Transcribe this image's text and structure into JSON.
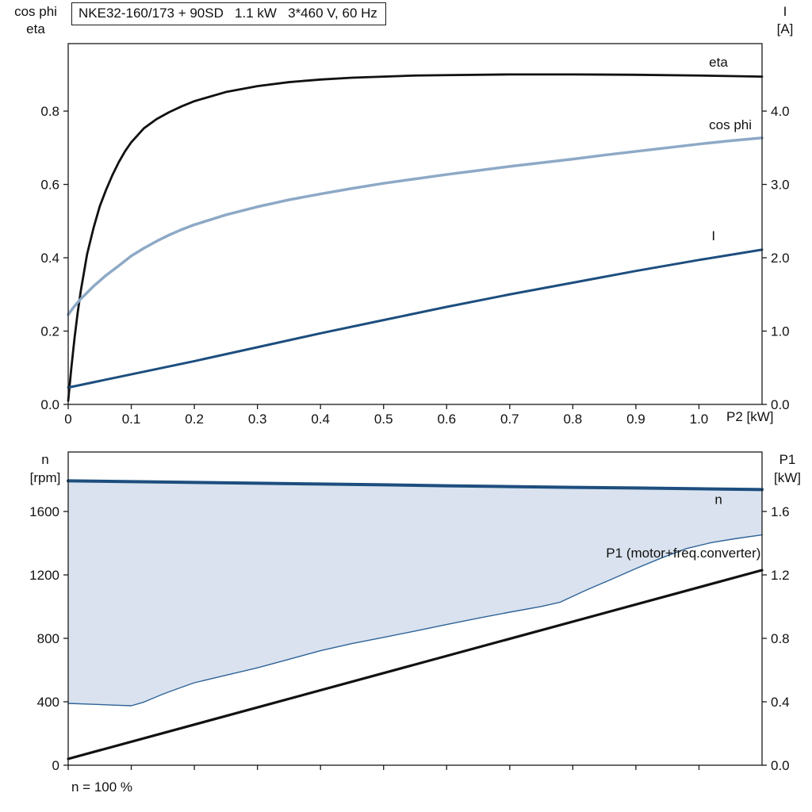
{
  "page": {
    "background": "#ffffff"
  },
  "footer": {
    "note": "n = 100 %"
  },
  "chart_data": [
    {
      "id": "motor-electrical",
      "type": "line",
      "title": "NKE32-160/173 + 90SD   1.1 kW   3*460 V, 60 Hz",
      "x": {
        "label": "P2 [kW]",
        "min": 0,
        "max": 1.1,
        "ticks": [
          0,
          0.1,
          0.2,
          0.3,
          0.4,
          0.5,
          0.6,
          0.7,
          0.8,
          0.9,
          1.0
        ],
        "tick_labels": [
          "0",
          "0.1",
          "0.2",
          "0.3",
          "0.4",
          "0.5",
          "0.6",
          "0.7",
          "0.8",
          "0.9",
          "1.0"
        ]
      },
      "y_left": {
        "label_lines": [
          "cos phi",
          "eta"
        ],
        "min": 0,
        "max": 0.984,
        "ticks": [
          0,
          0.2,
          0.4,
          0.6,
          0.8
        ],
        "tick_labels": [
          "0.0",
          "0.2",
          "0.4",
          "0.6",
          "0.8"
        ]
      },
      "y_right": {
        "label_lines": [
          "I",
          "[A]"
        ],
        "min": 0,
        "max": 4.92,
        "ticks": [
          0,
          1,
          2,
          3,
          4
        ],
        "tick_labels": [
          "0.0",
          "1.0",
          "2.0",
          "3.0",
          "4.0"
        ]
      },
      "grid": false,
      "series": [
        {
          "name": "eta",
          "type": "line",
          "axis": "left",
          "color": "#111111",
          "width": 2.8,
          "points": [
            [
              0,
              0.01
            ],
            [
              0.005,
              0.1
            ],
            [
              0.01,
              0.18
            ],
            [
              0.015,
              0.25
            ],
            [
              0.02,
              0.31
            ],
            [
              0.03,
              0.41
            ],
            [
              0.04,
              0.48
            ],
            [
              0.05,
              0.54
            ],
            [
              0.06,
              0.585
            ],
            [
              0.07,
              0.625
            ],
            [
              0.08,
              0.66
            ],
            [
              0.09,
              0.69
            ],
            [
              0.1,
              0.715
            ],
            [
              0.12,
              0.753
            ],
            [
              0.14,
              0.778
            ],
            [
              0.16,
              0.797
            ],
            [
              0.18,
              0.813
            ],
            [
              0.2,
              0.827
            ],
            [
              0.25,
              0.852
            ],
            [
              0.3,
              0.868
            ],
            [
              0.35,
              0.879
            ],
            [
              0.4,
              0.886
            ],
            [
              0.45,
              0.891
            ],
            [
              0.5,
              0.894
            ],
            [
              0.55,
              0.897
            ],
            [
              0.6,
              0.898
            ],
            [
              0.7,
              0.9
            ],
            [
              0.8,
              0.9
            ],
            [
              0.9,
              0.899
            ],
            [
              1.0,
              0.897
            ],
            [
              1.1,
              0.894
            ]
          ]
        },
        {
          "name": "cos-phi",
          "type": "line",
          "axis": "left",
          "color": "#8da9c6",
          "width": 3.5,
          "points": [
            [
              0,
              0.245
            ],
            [
              0.01,
              0.268
            ],
            [
              0.02,
              0.288
            ],
            [
              0.03,
              0.305
            ],
            [
              0.04,
              0.322
            ],
            [
              0.05,
              0.337
            ],
            [
              0.06,
              0.352
            ],
            [
              0.08,
              0.378
            ],
            [
              0.1,
              0.405
            ],
            [
              0.12,
              0.426
            ],
            [
              0.14,
              0.445
            ],
            [
              0.16,
              0.462
            ],
            [
              0.18,
              0.477
            ],
            [
              0.2,
              0.49
            ],
            [
              0.25,
              0.517
            ],
            [
              0.3,
              0.539
            ],
            [
              0.35,
              0.558
            ],
            [
              0.4,
              0.574
            ],
            [
              0.45,
              0.589
            ],
            [
              0.5,
              0.603
            ],
            [
              0.55,
              0.615
            ],
            [
              0.6,
              0.627
            ],
            [
              0.65,
              0.638
            ],
            [
              0.7,
              0.649
            ],
            [
              0.75,
              0.659
            ],
            [
              0.8,
              0.669
            ],
            [
              0.85,
              0.68
            ],
            [
              0.9,
              0.69
            ],
            [
              0.95,
              0.7
            ],
            [
              1.0,
              0.71
            ],
            [
              1.05,
              0.719
            ],
            [
              1.1,
              0.727
            ]
          ]
        },
        {
          "name": "current-I",
          "type": "line",
          "axis": "right",
          "color": "#1d4e7e",
          "width": 3,
          "points": [
            [
              0,
              0.23
            ],
            [
              0.1,
              0.41
            ],
            [
              0.2,
              0.59
            ],
            [
              0.3,
              0.78
            ],
            [
              0.4,
              0.97
            ],
            [
              0.5,
              1.15
            ],
            [
              0.6,
              1.33
            ],
            [
              0.7,
              1.5
            ],
            [
              0.8,
              1.66
            ],
            [
              0.9,
              1.82
            ],
            [
              1.0,
              1.97
            ],
            [
              1.05,
              2.04
            ],
            [
              1.1,
              2.11
            ]
          ]
        }
      ],
      "annotations": [
        {
          "id": "eta-label",
          "text": "eta",
          "x": 1.016,
          "y": 0.921,
          "axis": "left",
          "color": "#111111",
          "anchor": "start"
        },
        {
          "id": "cos-phi-label",
          "text": "cos phi",
          "x": 1.016,
          "y": 0.75,
          "axis": "left",
          "color": "#8da9c6",
          "anchor": "start"
        },
        {
          "id": "current-label",
          "text": "I",
          "x": 1.02,
          "y": 2.24,
          "axis": "right",
          "color": "#1d4e7e",
          "anchor": "start"
        }
      ]
    },
    {
      "id": "speed-power",
      "type": "line",
      "title": "",
      "x": {
        "label": "",
        "min": 0,
        "max": 1.1,
        "ticks": [
          0,
          0.1,
          0.2,
          0.3,
          0.4,
          0.5,
          0.6,
          0.7,
          0.8,
          0.9,
          1.0
        ],
        "tick_labels": [
          "",
          "",
          "",
          "",
          "",
          "",
          "",
          "",
          "",
          "",
          ""
        ]
      },
      "y_left": {
        "label_lines": [
          "n",
          "[rpm]"
        ],
        "min": 0,
        "max": 1975,
        "ticks": [
          0,
          400,
          800,
          1200,
          1600
        ],
        "tick_labels": [
          "0",
          "400",
          "800",
          "1200",
          "1600"
        ]
      },
      "y_right": {
        "label_lines": [
          "P1",
          "[kW]"
        ],
        "min": 0,
        "max": 1.975,
        "ticks": [
          0,
          0.4,
          0.8,
          1.2,
          1.6
        ],
        "tick_labels": [
          "0.0",
          "0.4",
          "0.8",
          "1.2",
          "1.6"
        ]
      },
      "grid": false,
      "series": [
        {
          "name": "speed-range-band",
          "type": "band",
          "axis": "left",
          "fill": "#d9e2ee",
          "upper_ref": "n-speed",
          "lower_ref": "n-min-boundary"
        },
        {
          "name": "n-min-boundary",
          "type": "line",
          "axis": "left",
          "color": "#2e6398",
          "width": 1.4,
          "points": [
            [
              0,
              390
            ],
            [
              0.04,
              384
            ],
            [
              0.08,
              378
            ],
            [
              0.1,
              375
            ],
            [
              0.12,
              398
            ],
            [
              0.15,
              448
            ],
            [
              0.18,
              492
            ],
            [
              0.2,
              520
            ],
            [
              0.25,
              567
            ],
            [
              0.3,
              614
            ],
            [
              0.35,
              668
            ],
            [
              0.4,
              722
            ],
            [
              0.45,
              767
            ],
            [
              0.5,
              806
            ],
            [
              0.55,
              846
            ],
            [
              0.6,
              887
            ],
            [
              0.65,
              927
            ],
            [
              0.7,
              965
            ],
            [
              0.75,
              1001
            ],
            [
              0.78,
              1028
            ],
            [
              0.82,
              1102
            ],
            [
              0.86,
              1170
            ],
            [
              0.9,
              1240
            ],
            [
              0.94,
              1306
            ],
            [
              0.98,
              1366
            ],
            [
              1.02,
              1404
            ],
            [
              1.06,
              1430
            ],
            [
              1.1,
              1452
            ]
          ]
        },
        {
          "name": "n-speed",
          "type": "line",
          "axis": "left",
          "color": "#1d4e7e",
          "width": 4,
          "points": [
            [
              0,
              1793
            ],
            [
              0.1,
              1788
            ],
            [
              0.2,
              1783
            ],
            [
              0.3,
              1778
            ],
            [
              0.4,
              1773
            ],
            [
              0.5,
              1768
            ],
            [
              0.6,
              1762
            ],
            [
              0.7,
              1757
            ],
            [
              0.8,
              1752
            ],
            [
              0.9,
              1748
            ],
            [
              1.0,
              1743
            ],
            [
              1.1,
              1738
            ]
          ]
        },
        {
          "name": "P1",
          "type": "line",
          "axis": "right",
          "color": "#111111",
          "width": 3.2,
          "points": [
            [
              0,
              0.04
            ],
            [
              0.55,
              0.635
            ],
            [
              1.1,
              1.23
            ]
          ]
        }
      ],
      "annotations": [
        {
          "id": "n-label",
          "text": "n",
          "x": 1.025,
          "y": 1648,
          "axis": "left",
          "color": "#2e6398",
          "anchor": "start"
        },
        {
          "id": "p1-label",
          "text": "P1 (motor+freq.converter)",
          "x": 1.098,
          "y": 1.31,
          "axis": "right",
          "color": "#111111",
          "anchor": "end"
        }
      ]
    }
  ]
}
